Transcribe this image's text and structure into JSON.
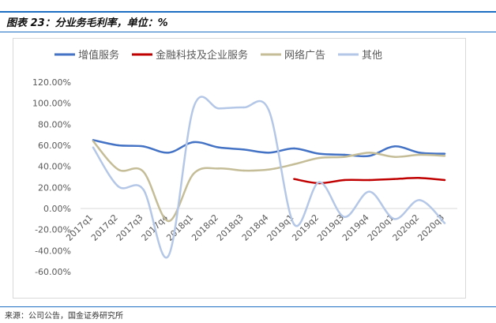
{
  "header": {
    "title": "图表 23：分业务毛利率，单位：%"
  },
  "footer": {
    "source": "来源：公司公告，国金证券研究所"
  },
  "chart_data": {
    "type": "line",
    "title": "",
    "xlabel": "",
    "ylabel": "",
    "ylim": [
      -60,
      120
    ],
    "yticks": [
      "120.00%",
      "100.00%",
      "80.00%",
      "60.00%",
      "40.00%",
      "20.00%",
      "0.00%",
      "-20.00%",
      "-40.00%",
      "-60.00%"
    ],
    "legend_position": "top",
    "grid": false,
    "categories": [
      "2017q1",
      "2017q2",
      "2017q3",
      "2017q4",
      "2018q1",
      "2018q2",
      "2018q3",
      "2018q4",
      "2019q1",
      "2019q2",
      "2019q3",
      "2019q4",
      "2020q1",
      "2020q2",
      "2020q3"
    ],
    "series": [
      {
        "name": "增值服务",
        "color": "#4472c4",
        "values": [
          65,
          60,
          59,
          53,
          63,
          58,
          56,
          53,
          57,
          52,
          51,
          50,
          59,
          53,
          52
        ]
      },
      {
        "name": "金融科技及企业服务",
        "color": "#c00000",
        "values": [
          null,
          null,
          null,
          null,
          null,
          null,
          null,
          null,
          28,
          24,
          27,
          27,
          28,
          29,
          27
        ]
      },
      {
        "name": "网络广告",
        "color": "#c4bd97",
        "values": [
          64,
          37,
          35,
          -12,
          33,
          38,
          36,
          37,
          42,
          48,
          49,
          53,
          49,
          51,
          50
        ]
      },
      {
        "name": "其他",
        "color": "#b4c7e7",
        "values": [
          58,
          21,
          18,
          -45,
          96,
          95,
          96,
          93,
          -15,
          25,
          -8,
          16,
          -10,
          8,
          -14
        ]
      }
    ]
  }
}
